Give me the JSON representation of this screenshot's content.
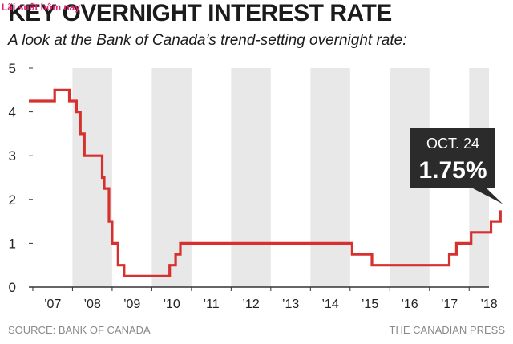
{
  "watermark": "Lãi suất hôm nay",
  "chart_data": {
    "type": "line",
    "title": "KEY OVERNIGHT INTEREST RATE",
    "subtitle": "A look at the Bank of Canada’s trend-setting overnight rate:",
    "x_labels": [
      "’07",
      "’08",
      "’09",
      "’10",
      "’11",
      "’12",
      "’13",
      "’14",
      "’15",
      "’16",
      "’17",
      "’18"
    ],
    "y_ticks": [
      0,
      1,
      2,
      3,
      4,
      5
    ],
    "xlim": [
      2006.9,
      2018.5
    ],
    "ylim": [
      0,
      5
    ],
    "grid": true,
    "series": [
      {
        "color": "#d6312f",
        "points": [
          [
            2006.9,
            4.25
          ],
          [
            2007.55,
            4.25
          ],
          [
            2007.55,
            4.5
          ],
          [
            2007.92,
            4.5
          ],
          [
            2007.92,
            4.25
          ],
          [
            2008.1,
            4.25
          ],
          [
            2008.1,
            4.0
          ],
          [
            2008.2,
            4.0
          ],
          [
            2008.2,
            3.5
          ],
          [
            2008.3,
            3.5
          ],
          [
            2008.3,
            3.0
          ],
          [
            2008.75,
            3.0
          ],
          [
            2008.75,
            2.5
          ],
          [
            2008.8,
            2.5
          ],
          [
            2008.8,
            2.25
          ],
          [
            2008.92,
            2.25
          ],
          [
            2008.92,
            1.5
          ],
          [
            2009.0,
            1.5
          ],
          [
            2009.0,
            1.0
          ],
          [
            2009.15,
            1.0
          ],
          [
            2009.15,
            0.5
          ],
          [
            2009.3,
            0.5
          ],
          [
            2009.3,
            0.25
          ],
          [
            2010.45,
            0.25
          ],
          [
            2010.45,
            0.5
          ],
          [
            2010.6,
            0.5
          ],
          [
            2010.6,
            0.75
          ],
          [
            2010.72,
            0.75
          ],
          [
            2010.72,
            1.0
          ],
          [
            2015.05,
            1.0
          ],
          [
            2015.05,
            0.75
          ],
          [
            2015.55,
            0.75
          ],
          [
            2015.55,
            0.5
          ],
          [
            2017.5,
            0.5
          ],
          [
            2017.5,
            0.75
          ],
          [
            2017.68,
            0.75
          ],
          [
            2017.68,
            1.0
          ],
          [
            2018.05,
            1.0
          ],
          [
            2018.05,
            1.25
          ],
          [
            2018.55,
            1.25
          ],
          [
            2018.55,
            1.5
          ],
          [
            2018.79,
            1.5
          ],
          [
            2018.79,
            1.75
          ]
        ]
      }
    ],
    "annotation": {
      "date": "OCT. 24",
      "value": "1.75%"
    }
  },
  "footer": {
    "source": "SOURCE: BANK OF CANADA",
    "credit": "THE CANADIAN PRESS"
  },
  "colors": {
    "line": "#d6312f",
    "band": "#e8e8e8",
    "axis": "#333333",
    "callout": "#2b2b2b"
  }
}
